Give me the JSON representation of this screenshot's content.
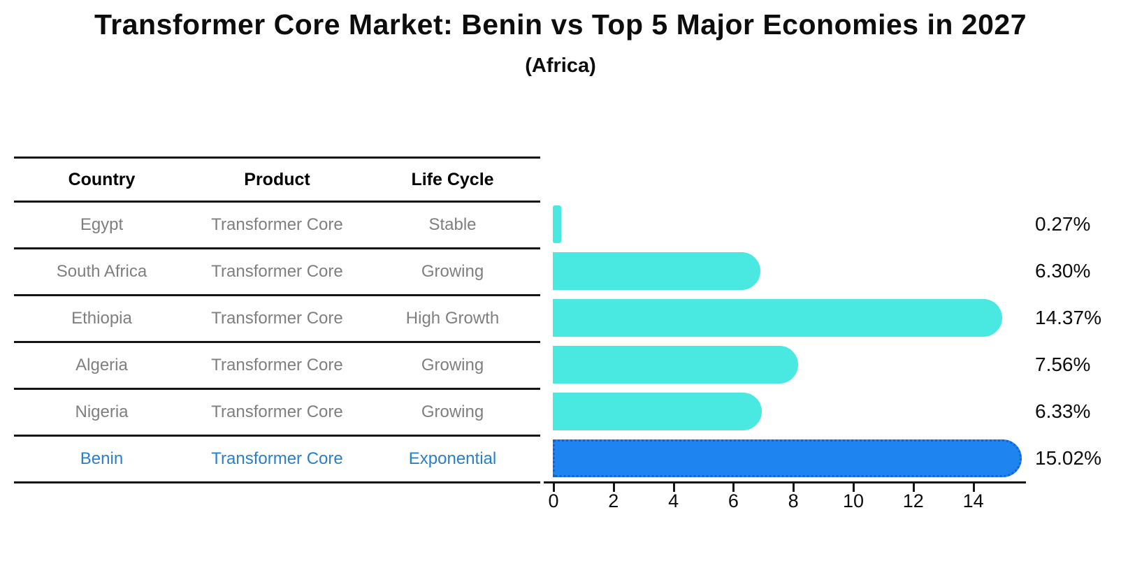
{
  "title": "Transformer Core Market: Benin vs Top 5 Major Economies in 2027",
  "subtitle": "(Africa)",
  "table": {
    "headers": [
      "Country",
      "Product",
      "Life Cycle"
    ],
    "rows": [
      {
        "country": "Egypt",
        "product": "Transformer Core",
        "life_cycle": "Stable",
        "value": 0.27,
        "value_label": "0.27%",
        "highlight": false
      },
      {
        "country": "South Africa",
        "product": "Transformer Core",
        "life_cycle": "Growing",
        "value": 6.3,
        "value_label": "6.30%",
        "highlight": false
      },
      {
        "country": "Ethiopia",
        "product": "Transformer Core",
        "life_cycle": "High Growth",
        "value": 14.37,
        "value_label": "14.37%",
        "highlight": false
      },
      {
        "country": "Algeria",
        "product": "Transformer Core",
        "life_cycle": "Growing",
        "value": 7.56,
        "value_label": "7.56%",
        "highlight": false
      },
      {
        "country": "Nigeria",
        "product": "Transformer Core",
        "life_cycle": "Growing",
        "value": 6.33,
        "value_label": "6.33%",
        "highlight": false
      },
      {
        "country": "Benin",
        "product": "Transformer Core",
        "life_cycle": "Exponential",
        "value": 15.02,
        "value_label": "15.02%",
        "highlight": true
      }
    ]
  },
  "chart_data": {
    "type": "bar",
    "orientation": "horizontal",
    "title": "Transformer Core Market: Benin vs Top 5 Major Economies in 2027",
    "subtitle": "(Africa)",
    "categories": [
      "Egypt",
      "South Africa",
      "Ethiopia",
      "Algeria",
      "Nigeria",
      "Benin"
    ],
    "values": [
      0.27,
      6.3,
      14.37,
      7.56,
      6.33,
      15.02
    ],
    "value_labels": [
      "0.27%",
      "6.30%",
      "14.37%",
      "7.56%",
      "6.33%",
      "15.02%"
    ],
    "unit": "%",
    "xlabel": "",
    "ylabel": "",
    "x_ticks": [
      0,
      2,
      4,
      6,
      8,
      10,
      12,
      14
    ],
    "xlim": [
      0,
      15.8
    ],
    "grid": false,
    "legend": false,
    "highlight_index": 5,
    "bar_color": "#49e8e0",
    "highlight_color": "#1e85f0",
    "highlight_edge_color": "#1263d6",
    "highlight_text_color": "#2a7fc9"
  }
}
